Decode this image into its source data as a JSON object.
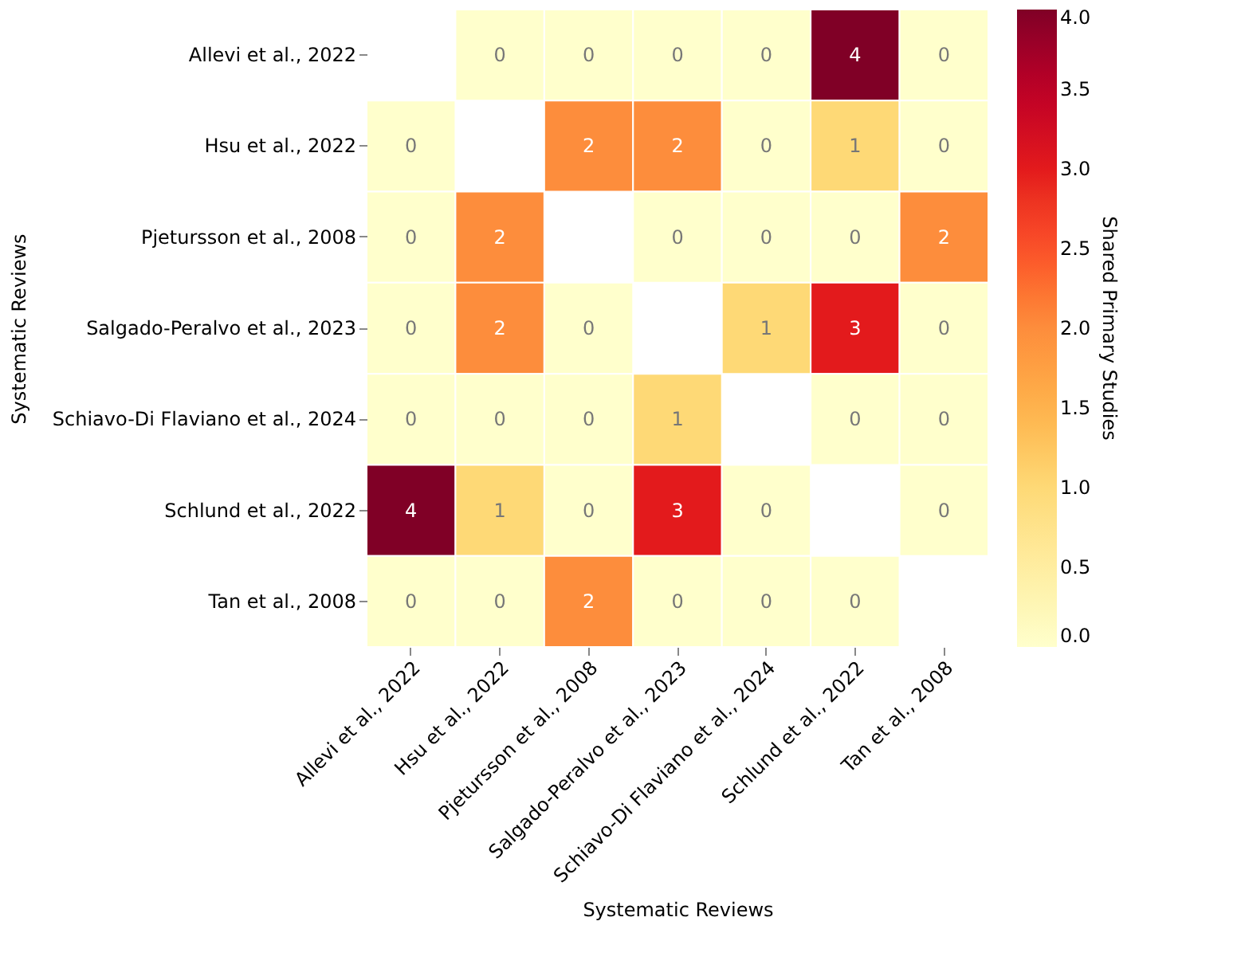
{
  "chart_data": {
    "type": "heatmap",
    "xlabel": "Systematic Reviews",
    "ylabel": "Systematic Reviews",
    "clabel": "Shared Primary Studies",
    "categories": [
      "Allevi et al., 2022",
      "Hsu et al., 2022",
      "Pjetursson et al., 2008",
      "Salgado-Peralvo et al., 2023",
      "Schiavo-Di Flaviano et al., 2024",
      "Schlund et al., 2022",
      "Tan et al., 2008"
    ],
    "y_categories": [
      "Allevi et al., 2022",
      "Hsu et al., 2022",
      "Pjetursson et al., 2008",
      "Salgado-Peralvo et al., 2023",
      "Schiavo-Di Flaviano et al., 2024",
      "Schlund et al., 2022",
      "Tan et al., 2008"
    ],
    "cells": [
      [
        null,
        0,
        0,
        0,
        0,
        4,
        0
      ],
      [
        0,
        null,
        2,
        2,
        0,
        1,
        0
      ],
      [
        0,
        2,
        null,
        0,
        0,
        0,
        2
      ],
      [
        0,
        2,
        0,
        null,
        1,
        3,
        0
      ],
      [
        0,
        0,
        0,
        1,
        null,
        0,
        0
      ],
      [
        4,
        1,
        0,
        3,
        0,
        null,
        0
      ],
      [
        0,
        0,
        2,
        0,
        0,
        0,
        null
      ]
    ],
    "clim": [
      0,
      4
    ],
    "cticks": [
      {
        "value": 0,
        "label": "0.0"
      },
      0.5,
      {
        "value": 1,
        "label": "1.0"
      },
      1.5,
      {
        "value": 2,
        "label": "2.0"
      },
      2.5,
      {
        "value": 3,
        "label": "3.0"
      },
      3.5,
      {
        "value": 4,
        "label": "4.0"
      }
    ],
    "data_labels": true
  }
}
